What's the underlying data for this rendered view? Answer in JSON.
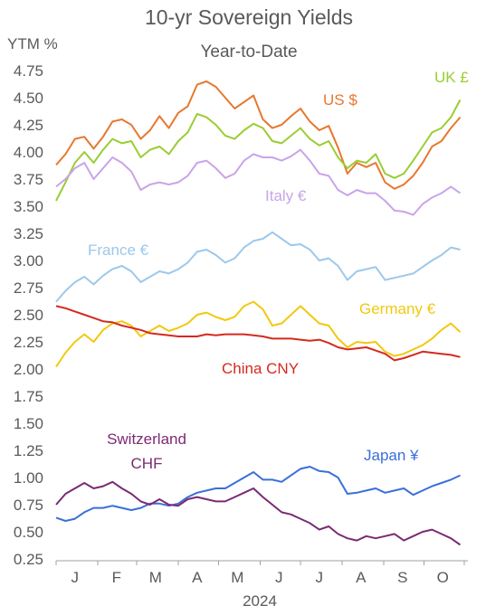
{
  "chart_data": {
    "type": "line",
    "title": "10-yr Sovereign Yields",
    "subtitle": "Year-to-Date",
    "ylabel": "YTM %",
    "xlabel": "2024",
    "ylim": [
      0.25,
      4.75
    ],
    "y_ticks": [
      "0.25",
      "0.50",
      "0.75",
      "1.00",
      "1.25",
      "1.50",
      "1.75",
      "2.00",
      "2.25",
      "2.50",
      "2.75",
      "3.00",
      "3.25",
      "3.50",
      "3.75",
      "4.00",
      "4.25",
      "4.50",
      "4.75"
    ],
    "x_ticks": [
      "J",
      "F",
      "M",
      "A",
      "M",
      "J",
      "J",
      "A",
      "S",
      "O"
    ],
    "x_tick_dates": [
      "2024-01-15",
      "2024-02-15",
      "2024-03-15",
      "2024-04-15",
      "2024-05-15",
      "2024-06-15",
      "2024-07-15",
      "2024-08-15",
      "2024-09-15",
      "2024-10-15"
    ],
    "x_range": [
      "2024-01-01",
      "2024-10-31"
    ],
    "grid": false,
    "x": [
      "2024-01-01",
      "2024-01-08",
      "2024-01-15",
      "2024-01-22",
      "2024-01-29",
      "2024-02-05",
      "2024-02-12",
      "2024-02-19",
      "2024-02-26",
      "2024-03-04",
      "2024-03-11",
      "2024-03-18",
      "2024-03-25",
      "2024-04-01",
      "2024-04-08",
      "2024-04-15",
      "2024-04-22",
      "2024-04-29",
      "2024-05-06",
      "2024-05-13",
      "2024-05-20",
      "2024-05-27",
      "2024-06-03",
      "2024-06-10",
      "2024-06-17",
      "2024-06-24",
      "2024-07-01",
      "2024-07-08",
      "2024-07-15",
      "2024-07-22",
      "2024-07-29",
      "2024-08-05",
      "2024-08-12",
      "2024-08-19",
      "2024-08-26",
      "2024-09-02",
      "2024-09-09",
      "2024-09-16",
      "2024-09-23",
      "2024-09-30",
      "2024-10-07",
      "2024-10-14",
      "2024-10-21",
      "2024-10-28"
    ],
    "series": [
      {
        "name": "US $",
        "color": "#E8772E",
        "values": [
          3.88,
          3.98,
          4.12,
          4.14,
          4.03,
          4.14,
          4.28,
          4.3,
          4.25,
          4.12,
          4.2,
          4.33,
          4.22,
          4.36,
          4.42,
          4.62,
          4.65,
          4.6,
          4.5,
          4.4,
          4.46,
          4.52,
          4.3,
          4.22,
          4.25,
          4.33,
          4.4,
          4.28,
          4.2,
          4.24,
          4.04,
          3.8,
          3.9,
          3.86,
          3.9,
          3.72,
          3.66,
          3.7,
          3.78,
          3.9,
          4.05,
          4.1,
          4.22,
          4.32
        ]
      },
      {
        "name": "UK £",
        "color": "#9ACD32",
        "values": [
          3.55,
          3.72,
          3.9,
          4.0,
          3.9,
          4.02,
          4.12,
          4.08,
          4.1,
          3.95,
          4.02,
          4.05,
          3.98,
          4.1,
          4.18,
          4.35,
          4.32,
          4.25,
          4.15,
          4.12,
          4.2,
          4.26,
          4.22,
          4.1,
          4.08,
          4.15,
          4.22,
          4.12,
          4.06,
          4.1,
          3.95,
          3.85,
          3.92,
          3.9,
          3.98,
          3.8,
          3.76,
          3.8,
          3.92,
          4.05,
          4.18,
          4.22,
          4.32,
          4.48
        ]
      },
      {
        "name": "Italy €",
        "color": "#C9A4E8",
        "values": [
          3.68,
          3.75,
          3.85,
          3.9,
          3.75,
          3.85,
          3.95,
          3.9,
          3.82,
          3.65,
          3.7,
          3.72,
          3.7,
          3.72,
          3.78,
          3.9,
          3.92,
          3.85,
          3.76,
          3.8,
          3.92,
          3.98,
          3.95,
          3.95,
          3.92,
          3.96,
          4.02,
          3.92,
          3.8,
          3.78,
          3.65,
          3.6,
          3.65,
          3.62,
          3.62,
          3.55,
          3.46,
          3.45,
          3.42,
          3.52,
          3.58,
          3.62,
          3.68,
          3.62
        ]
      },
      {
        "name": "France €",
        "color": "#9CC8EB",
        "values": [
          2.62,
          2.72,
          2.8,
          2.85,
          2.78,
          2.86,
          2.92,
          2.95,
          2.9,
          2.8,
          2.85,
          2.9,
          2.88,
          2.92,
          2.98,
          3.08,
          3.1,
          3.05,
          2.98,
          3.02,
          3.12,
          3.18,
          3.2,
          3.26,
          3.2,
          3.14,
          3.15,
          3.1,
          3.0,
          3.02,
          2.95,
          2.82,
          2.9,
          2.92,
          2.94,
          2.82,
          2.84,
          2.86,
          2.88,
          2.94,
          3.0,
          3.05,
          3.12,
          3.1
        ]
      },
      {
        "name": "Germany €",
        "color": "#F2C80F",
        "values": [
          2.02,
          2.15,
          2.25,
          2.32,
          2.25,
          2.36,
          2.42,
          2.44,
          2.4,
          2.3,
          2.35,
          2.4,
          2.35,
          2.38,
          2.42,
          2.5,
          2.52,
          2.48,
          2.45,
          2.48,
          2.58,
          2.62,
          2.55,
          2.4,
          2.42,
          2.5,
          2.58,
          2.5,
          2.42,
          2.4,
          2.28,
          2.2,
          2.25,
          2.24,
          2.25,
          2.16,
          2.12,
          2.14,
          2.18,
          2.22,
          2.28,
          2.36,
          2.42,
          2.34
        ]
      },
      {
        "name": "China CNY",
        "color": "#D42A1F",
        "values": [
          2.58,
          2.56,
          2.53,
          2.5,
          2.47,
          2.44,
          2.43,
          2.4,
          2.38,
          2.36,
          2.33,
          2.32,
          2.31,
          2.3,
          2.3,
          2.3,
          2.32,
          2.31,
          2.32,
          2.32,
          2.32,
          2.31,
          2.3,
          2.28,
          2.28,
          2.28,
          2.27,
          2.26,
          2.27,
          2.24,
          2.2,
          2.18,
          2.19,
          2.2,
          2.17,
          2.14,
          2.08,
          2.1,
          2.13,
          2.16,
          2.15,
          2.14,
          2.13,
          2.11
        ]
      },
      {
        "name": "Japan ¥",
        "color": "#3A6FD8",
        "values": [
          0.63,
          0.6,
          0.62,
          0.68,
          0.72,
          0.72,
          0.74,
          0.72,
          0.7,
          0.72,
          0.76,
          0.76,
          0.74,
          0.76,
          0.82,
          0.86,
          0.88,
          0.9,
          0.9,
          0.95,
          1.0,
          1.05,
          0.98,
          0.98,
          0.96,
          1.02,
          1.08,
          1.1,
          1.06,
          1.05,
          1.0,
          0.85,
          0.86,
          0.88,
          0.9,
          0.86,
          0.88,
          0.9,
          0.84,
          0.88,
          0.92,
          0.95,
          0.98,
          1.02
        ]
      },
      {
        "name": "Switzerland CHF",
        "color": "#7A2A73",
        "values": [
          0.75,
          0.85,
          0.9,
          0.95,
          0.9,
          0.92,
          0.96,
          0.9,
          0.85,
          0.78,
          0.75,
          0.8,
          0.75,
          0.74,
          0.8,
          0.82,
          0.8,
          0.78,
          0.78,
          0.82,
          0.86,
          0.9,
          0.82,
          0.75,
          0.68,
          0.66,
          0.62,
          0.58,
          0.52,
          0.55,
          0.48,
          0.44,
          0.42,
          0.46,
          0.44,
          0.46,
          0.48,
          0.42,
          0.46,
          0.5,
          0.52,
          0.48,
          0.44,
          0.38
        ]
      }
    ],
    "series_labels": [
      {
        "series": "US $",
        "text": "US $"
      },
      {
        "series": "UK £",
        "text": "UK £"
      },
      {
        "series": "Italy €",
        "text": "Italy €"
      },
      {
        "series": "France €",
        "text": "France €"
      },
      {
        "series": "Germany €",
        "text": "Germany €"
      },
      {
        "series": "China CNY",
        "text": "China CNY"
      },
      {
        "series": "Japan ¥",
        "text": "Japan ¥"
      },
      {
        "series": "Switzerland CHF",
        "text_line1": "Switzerland",
        "text_line2": "CHF"
      }
    ]
  }
}
